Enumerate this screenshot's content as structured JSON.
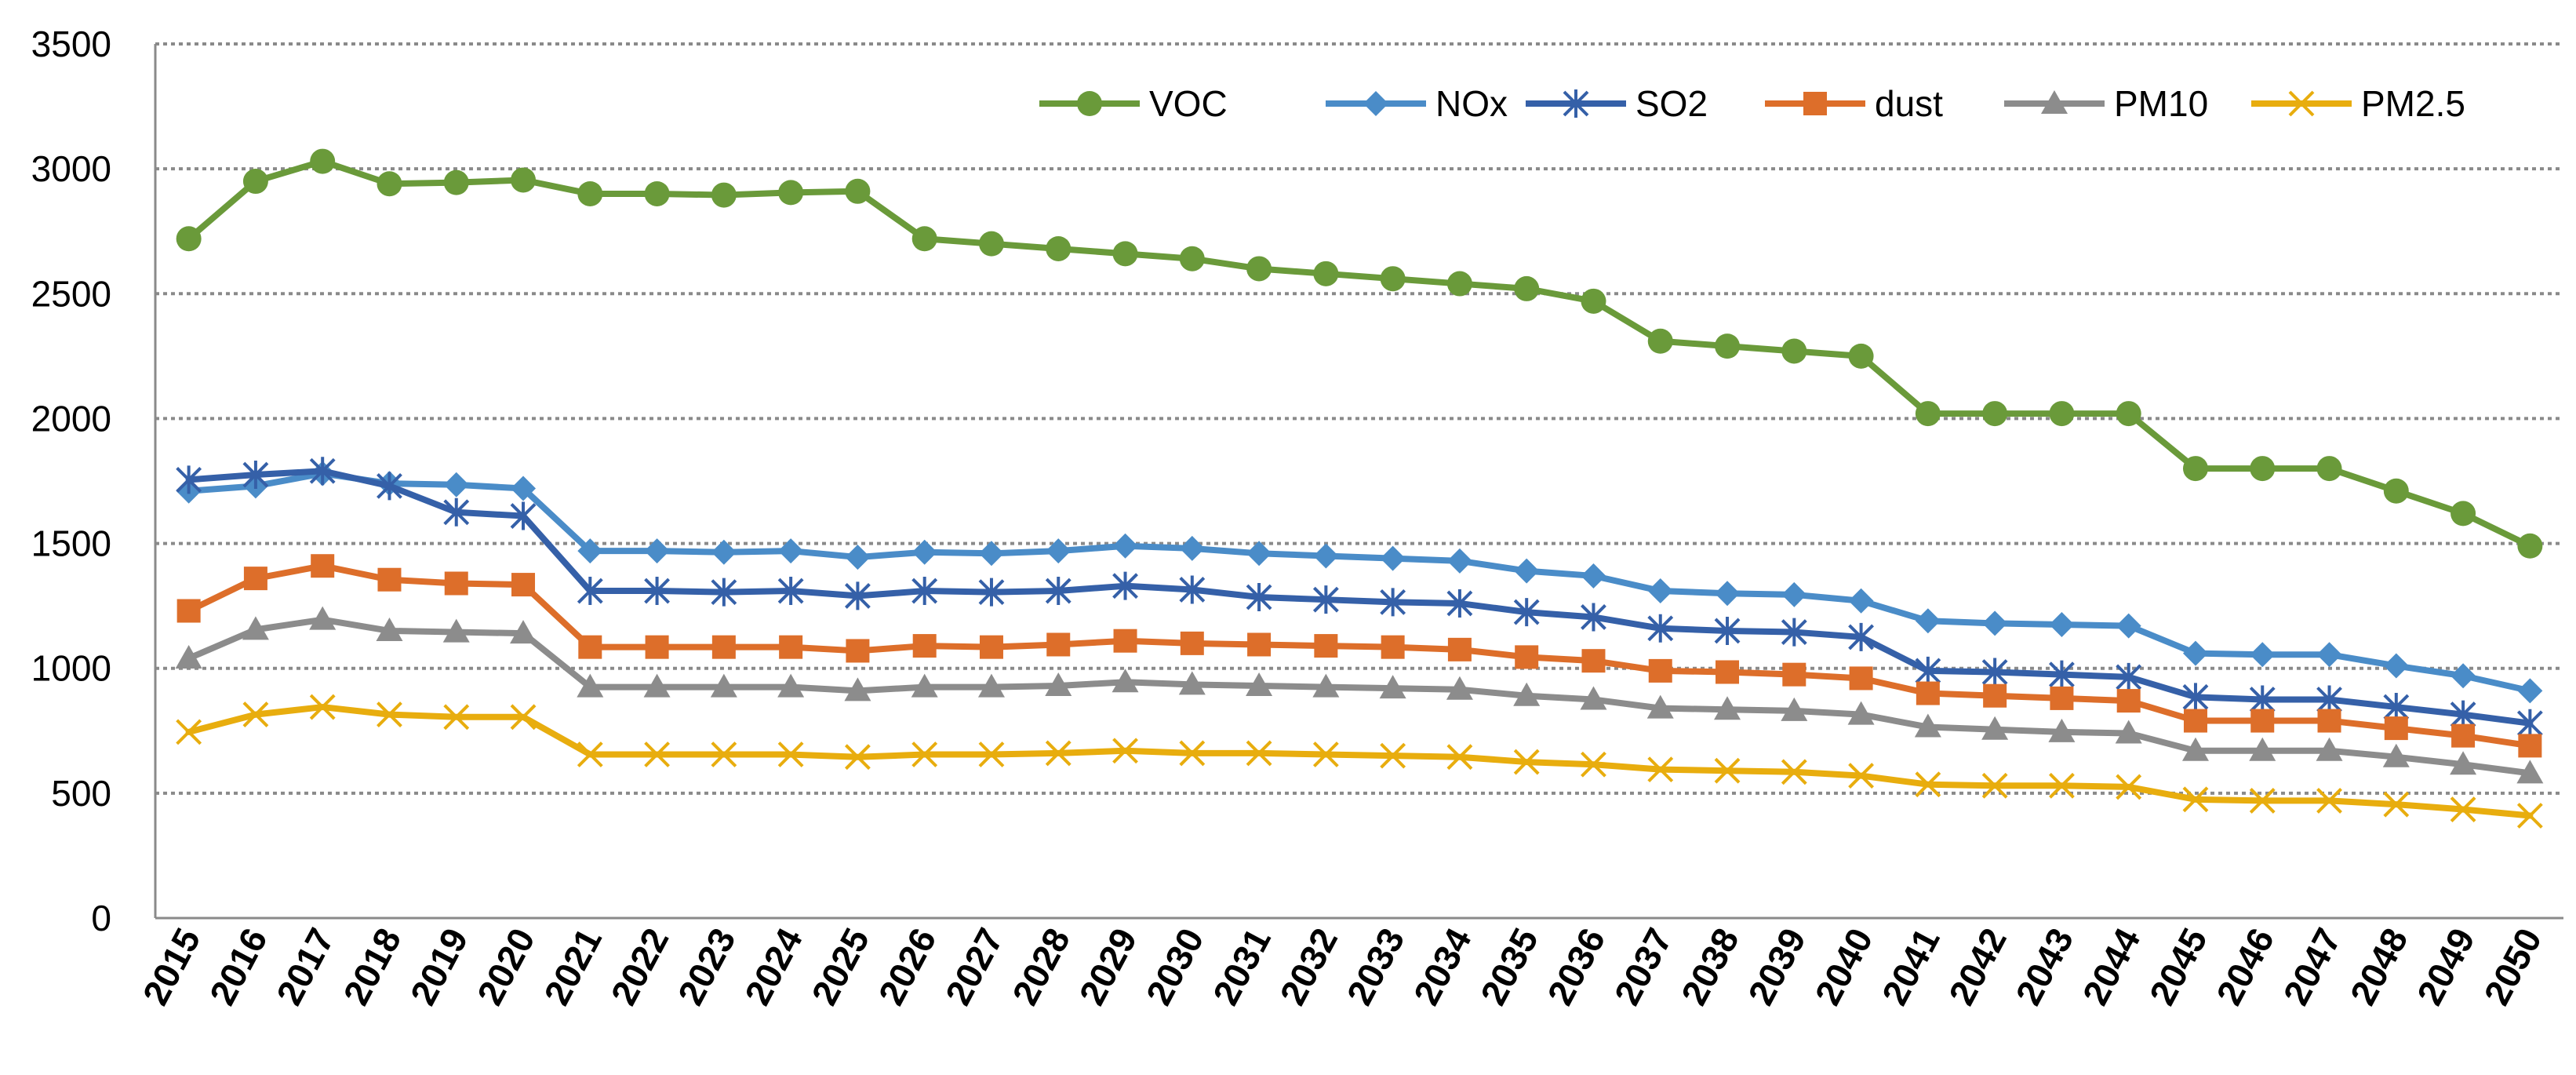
{
  "chart_data": {
    "type": "line",
    "title": "",
    "xlabel": "",
    "ylabel": "",
    "ylim": [
      0,
      3500
    ],
    "yticks": [
      0,
      500,
      1000,
      1500,
      2000,
      2500,
      3000,
      3500
    ],
    "grid": true,
    "legend_position": "top-right",
    "categories": [
      "2015",
      "2016",
      "2017",
      "2018",
      "2019",
      "2020",
      "2021",
      "2022",
      "2023",
      "2024",
      "2025",
      "2026",
      "2027",
      "2028",
      "2029",
      "2030",
      "2031",
      "2032",
      "2033",
      "2034",
      "2035",
      "2036",
      "2037",
      "2038",
      "2039",
      "2040",
      "2041",
      "2042",
      "2043",
      "2044",
      "2045",
      "2046",
      "2047",
      "2048",
      "2049",
      "2050"
    ],
    "series": [
      {
        "name": "VOC",
        "color": "#6a9a3a",
        "marker": "circle",
        "values": [
          2720,
          2950,
          3030,
          2940,
          2945,
          2955,
          2900,
          2900,
          2895,
          2905,
          2910,
          2720,
          2700,
          2680,
          2660,
          2640,
          2600,
          2580,
          2560,
          2540,
          2520,
          2470,
          2310,
          2290,
          2270,
          2250,
          2020,
          2020,
          2020,
          2020,
          1800,
          1800,
          1800,
          1710,
          1620,
          1490
        ]
      },
      {
        "name": "NOx",
        "color": "#4a8cc8",
        "marker": "diamond",
        "values": [
          1710,
          1730,
          1780,
          1740,
          1735,
          1720,
          1470,
          1470,
          1465,
          1470,
          1445,
          1465,
          1460,
          1470,
          1490,
          1480,
          1460,
          1450,
          1440,
          1430,
          1390,
          1370,
          1310,
          1300,
          1295,
          1270,
          1190,
          1180,
          1175,
          1170,
          1060,
          1055,
          1055,
          1010,
          970,
          910
        ]
      },
      {
        "name": "SO2",
        "color": "#3560a8",
        "marker": "asterisk",
        "values": [
          1755,
          1775,
          1790,
          1730,
          1625,
          1610,
          1310,
          1310,
          1305,
          1310,
          1290,
          1310,
          1305,
          1310,
          1330,
          1315,
          1285,
          1275,
          1265,
          1260,
          1225,
          1205,
          1160,
          1150,
          1145,
          1125,
          990,
          985,
          975,
          965,
          885,
          875,
          875,
          845,
          815,
          780
        ]
      },
      {
        "name": "dust",
        "color": "#dd6e2a",
        "marker": "square",
        "values": [
          1230,
          1360,
          1410,
          1355,
          1340,
          1335,
          1085,
          1085,
          1085,
          1085,
          1070,
          1090,
          1085,
          1095,
          1110,
          1100,
          1095,
          1090,
          1085,
          1075,
          1045,
          1030,
          990,
          985,
          975,
          960,
          900,
          890,
          880,
          870,
          790,
          790,
          790,
          760,
          730,
          690
        ]
      },
      {
        "name": "PM10",
        "color": "#8c8c8c",
        "marker": "triangle",
        "values": [
          1040,
          1155,
          1195,
          1150,
          1145,
          1140,
          925,
          925,
          925,
          925,
          910,
          925,
          925,
          930,
          945,
          935,
          930,
          925,
          920,
          915,
          890,
          875,
          840,
          835,
          830,
          815,
          765,
          755,
          745,
          740,
          670,
          670,
          670,
          645,
          615,
          580
        ]
      },
      {
        "name": "PM2.5",
        "color": "#e8ad0e",
        "marker": "x",
        "values": [
          745,
          815,
          845,
          815,
          805,
          805,
          655,
          655,
          655,
          655,
          645,
          655,
          655,
          660,
          670,
          660,
          660,
          655,
          650,
          645,
          625,
          615,
          595,
          590,
          585,
          570,
          535,
          530,
          530,
          525,
          475,
          470,
          470,
          455,
          435,
          410
        ]
      }
    ]
  }
}
